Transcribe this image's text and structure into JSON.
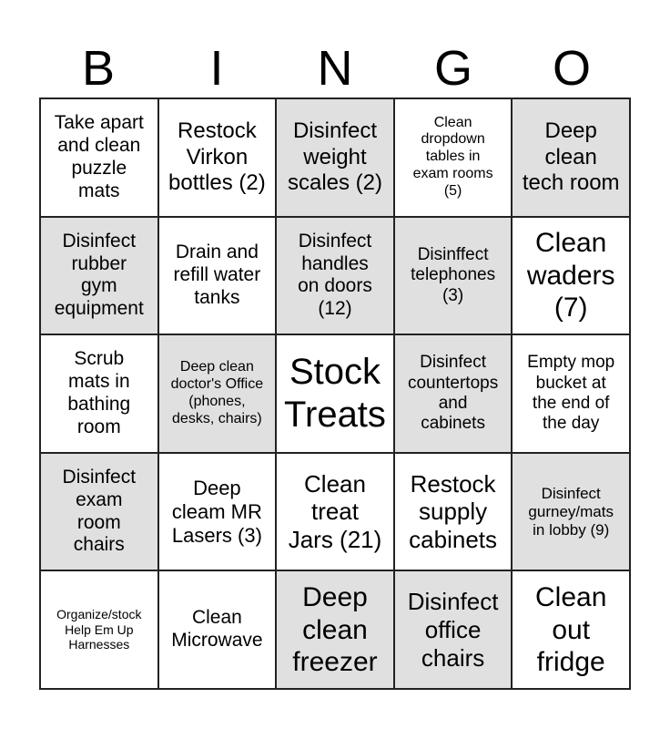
{
  "header": [
    "B",
    "I",
    "N",
    "G",
    "O"
  ],
  "cells": [
    {
      "text": "Take apart\nand clean\npuzzle\nmats",
      "shaded": false
    },
    {
      "text": "Restock\nVirkon\nbottles (2)",
      "shaded": false
    },
    {
      "text": "Disinfect\nweight\nscales (2)",
      "shaded": true
    },
    {
      "text": "Clean\ndropdown\ntables in\nexam rooms\n(5)",
      "shaded": false
    },
    {
      "text": "Deep\nclean\ntech room",
      "shaded": true
    },
    {
      "text": "Disinfect\nrubber\ngym\nequipment",
      "shaded": true
    },
    {
      "text": "Drain and\nrefill water\ntanks",
      "shaded": false
    },
    {
      "text": "Disinfect\nhandles\non doors\n(12)",
      "shaded": true
    },
    {
      "text": "Disinffect\ntelephones\n(3)",
      "shaded": true
    },
    {
      "text": "Clean\nwaders\n(7)",
      "shaded": false
    },
    {
      "text": "Scrub\nmats in\nbathing\nroom",
      "shaded": false
    },
    {
      "text": "Deep clean\ndoctor's Office\n(phones,\ndesks, chairs)",
      "shaded": true
    },
    {
      "text": "Stock\nTreats",
      "shaded": false
    },
    {
      "text": "Disinfect\ncountertops\nand\ncabinets",
      "shaded": true
    },
    {
      "text": "Empty mop\nbucket at\nthe end of\nthe day",
      "shaded": false
    },
    {
      "text": "Disinfect\nexam\nroom\nchairs",
      "shaded": true
    },
    {
      "text": "Deep\ncleam MR\nLasers (3)",
      "shaded": false
    },
    {
      "text": "Clean\ntreat\nJars (21)",
      "shaded": false
    },
    {
      "text": "Restock\nsupply\ncabinets",
      "shaded": false
    },
    {
      "text": "Disinfect\ngurney/mats\nin lobby (9)",
      "shaded": true
    },
    {
      "text": "Organize/stock\nHelp Em Up\nHarnesses",
      "shaded": false
    },
    {
      "text": "Clean\nMicrowave",
      "shaded": false
    },
    {
      "text": "Deep\nclean\nfreezer",
      "shaded": true
    },
    {
      "text": "Disinfect\noffice\nchairs",
      "shaded": true
    },
    {
      "text": "Clean\nout\nfridge",
      "shaded": false
    }
  ]
}
